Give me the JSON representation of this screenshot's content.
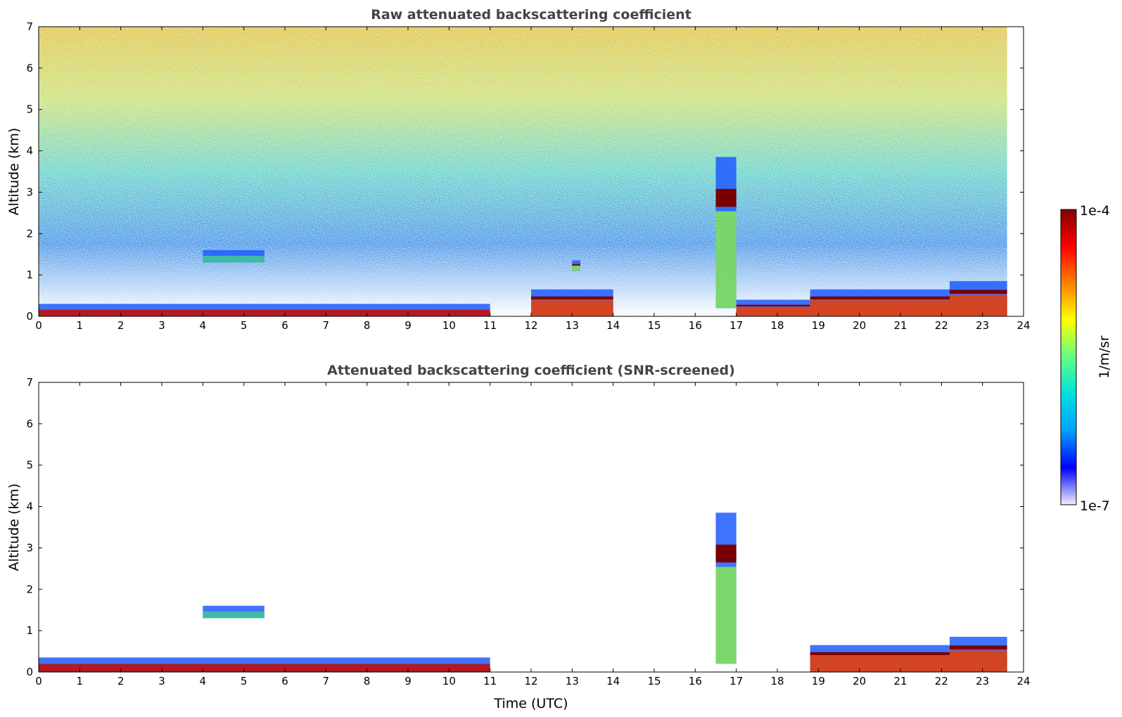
{
  "chart_data": [
    {
      "type": "heatmap",
      "title": "Raw attenuated backscattering coefficient",
      "xlabel": "",
      "ylabel": "Altitude (km)",
      "xlim": [
        0,
        24
      ],
      "ylim": [
        0,
        7
      ],
      "xticks": [
        0,
        1,
        2,
        3,
        4,
        5,
        6,
        7,
        8,
        9,
        10,
        11,
        12,
        13,
        14,
        15,
        16,
        17,
        18,
        19,
        20,
        21,
        22,
        23,
        24
      ],
      "yticks": [
        0,
        1,
        2,
        3,
        4,
        5,
        6,
        7
      ],
      "data_end_time": 23.6,
      "layers": [
        {
          "feature": "surface layer",
          "t_start": 0,
          "t_end": 11,
          "alt_bottom": 0.0,
          "alt_top": 0.25
        },
        {
          "feature": "boundary layer",
          "t_start": 12,
          "t_end": 14,
          "alt_bottom": 0.0,
          "alt_top": 0.6
        },
        {
          "feature": "elevated aerosol layer",
          "t_start": 4.0,
          "t_end": 5.5,
          "alt_bottom": 1.3,
          "alt_top": 1.55
        },
        {
          "feature": "cloud",
          "t_start": 13.0,
          "t_end": 13.2,
          "alt_bottom": 1.1,
          "alt_top": 1.3
        },
        {
          "feature": "cloud",
          "t_start": 16.5,
          "t_end": 17.0,
          "alt_bottom": 0.2,
          "alt_top": 3.8
        },
        {
          "feature": "boundary layer",
          "t_start": 17.0,
          "t_end": 18.8,
          "alt_bottom": 0.0,
          "alt_top": 0.35
        },
        {
          "feature": "boundary layer",
          "t_start": 18.8,
          "t_end": 22.2,
          "alt_bottom": 0.0,
          "alt_top": 0.6
        },
        {
          "feature": "boundary layer",
          "t_start": 22.2,
          "t_end": 23.6,
          "alt_bottom": 0.0,
          "alt_top": 0.8
        }
      ]
    },
    {
      "type": "heatmap",
      "title": "Attenuated backscattering coefficient (SNR-screened)",
      "xlabel": "Time (UTC)",
      "ylabel": "Altitude (km)",
      "xlim": [
        0,
        24
      ],
      "ylim": [
        0,
        7
      ],
      "xticks": [
        0,
        1,
        2,
        3,
        4,
        5,
        6,
        7,
        8,
        9,
        10,
        11,
        12,
        13,
        14,
        15,
        16,
        17,
        18,
        19,
        20,
        21,
        22,
        23,
        24
      ],
      "yticks": [
        0,
        1,
        2,
        3,
        4,
        5,
        6,
        7
      ],
      "data_end_time": 23.6,
      "layers": [
        {
          "feature": "surface layer",
          "t_start": 0,
          "t_end": 11,
          "alt_bottom": 0.0,
          "alt_top": 0.3
        },
        {
          "feature": "elevated aerosol layer",
          "t_start": 4.0,
          "t_end": 5.5,
          "alt_bottom": 1.3,
          "alt_top": 1.55
        },
        {
          "feature": "cloud",
          "t_start": 16.5,
          "t_end": 17.0,
          "alt_bottom": 0.2,
          "alt_top": 3.8
        },
        {
          "feature": "boundary layer",
          "t_start": 18.8,
          "t_end": 22.2,
          "alt_bottom": 0.0,
          "alt_top": 0.6
        },
        {
          "feature": "boundary layer",
          "t_start": 22.2,
          "t_end": 23.6,
          "alt_bottom": 0.0,
          "alt_top": 0.8
        }
      ]
    }
  ],
  "colorbar": {
    "label": "1/m/sr",
    "min_label": "1e-7",
    "max_label": "1e-4",
    "scale": "log",
    "colormap": [
      "#f0f0fa",
      "#0000ff",
      "#00a0ff",
      "#00e0e0",
      "#60ff80",
      "#ffff00",
      "#ff8000",
      "#ff0000",
      "#800000"
    ]
  }
}
